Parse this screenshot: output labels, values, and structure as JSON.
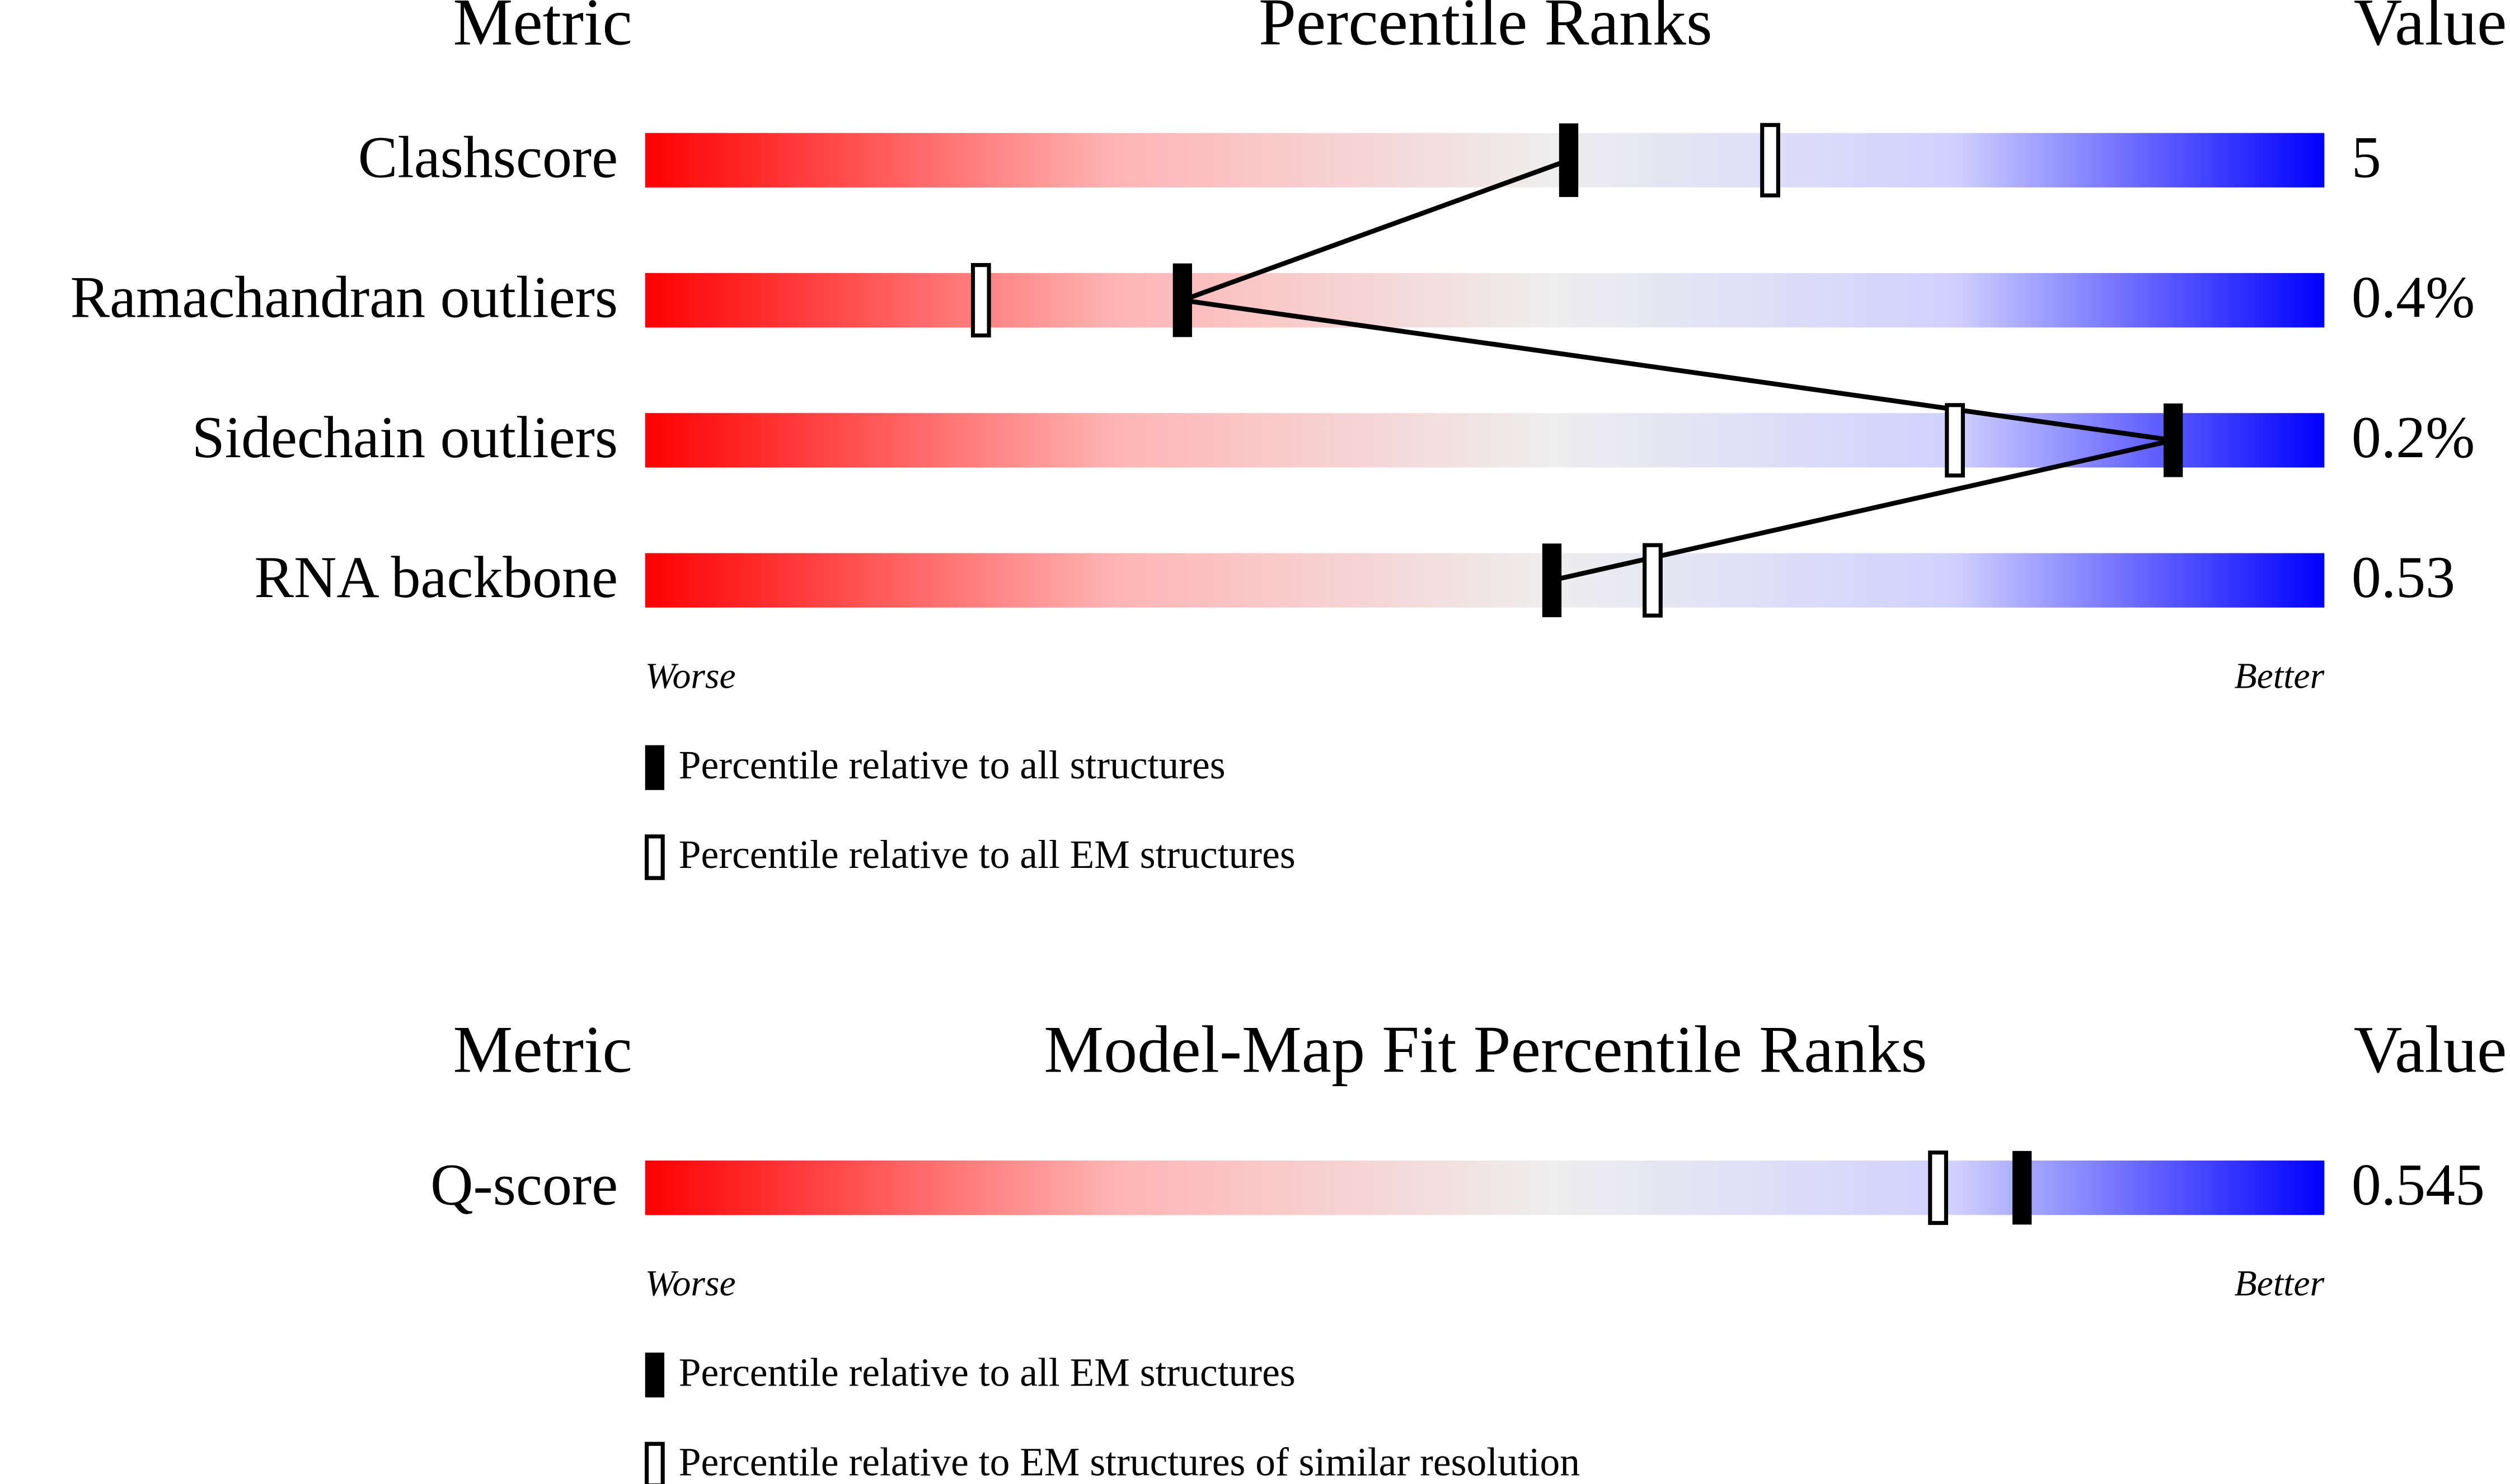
{
  "chart_data": [
    {
      "type": "percentile-slider",
      "metric_header": "Metric",
      "title": "Percentile Ranks",
      "value_header": "Value",
      "categories": [
        "Clashscore",
        "Ramachandran outliers",
        "Sidechain outliers",
        "RNA backbone"
      ],
      "value_labels": [
        "5",
        "0.4%",
        "0.2%",
        "0.53"
      ],
      "xlim": [
        0,
        100
      ],
      "lower_label": "Worse",
      "upper_label": "Better",
      "series": [
        {
          "name": "Percentile relative to all structures",
          "style": "filled",
          "color": "#000000",
          "values": [
            55,
            32,
            91,
            54
          ]
        },
        {
          "name": "Percentile relative to all EM structures",
          "style": "open",
          "color": "#000000",
          "values": [
            67,
            20,
            78,
            60
          ]
        }
      ]
    },
    {
      "type": "percentile-slider",
      "metric_header": "Metric",
      "title": "Model-Map Fit Percentile Ranks",
      "value_header": "Value",
      "categories": [
        "Q-score"
      ],
      "value_labels": [
        "0.545"
      ],
      "xlim": [
        0,
        100
      ],
      "lower_label": "Worse",
      "upper_label": "Better",
      "series": [
        {
          "name": "Percentile relative to all EM structures",
          "style": "filled",
          "color": "#000000",
          "values": [
            82
          ]
        },
        {
          "name": "Percentile relative to EM structures of similar resolution",
          "style": "open",
          "color": "#000000",
          "values": [
            77
          ]
        }
      ]
    }
  ]
}
